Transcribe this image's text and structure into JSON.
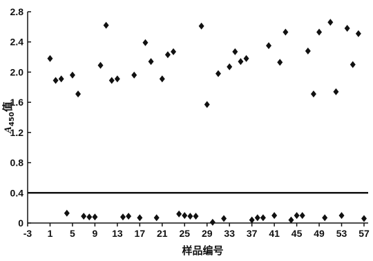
{
  "chart_data": {
    "type": "scatter",
    "title": "",
    "xlabel": "样品编号",
    "ylabel_main": "A",
    "ylabel_sub": "450",
    "ylabel_suffix": "值",
    "xlim": [
      -3,
      57
    ],
    "ylim": [
      0,
      2.8
    ],
    "x_ticks": [
      -3,
      1,
      5,
      9,
      13,
      17,
      21,
      25,
      29,
      33,
      37,
      41,
      45,
      49,
      53,
      57
    ],
    "y_ticks": [
      0,
      0.4,
      0.8,
      1.2,
      1.6,
      2.0,
      2.4,
      2.8
    ],
    "y_tick_labels": [
      "0",
      "0.4",
      "0.8",
      "1.2",
      "1.6",
      "2.0",
      "2.4",
      "2.8"
    ],
    "cutoff_line": 0.4,
    "grid": false,
    "legend": "none",
    "marker": "diamond",
    "marker_color": "#111111",
    "series": [
      {
        "points": [
          [
            1,
            2.18
          ],
          [
            2,
            1.89
          ],
          [
            3,
            1.91
          ],
          [
            4,
            0.13
          ],
          [
            5,
            1.96
          ],
          [
            6,
            1.71
          ],
          [
            7,
            0.09
          ],
          [
            8,
            0.08
          ],
          [
            9,
            0.08
          ],
          [
            10,
            2.09
          ],
          [
            11,
            2.62
          ],
          [
            12,
            1.89
          ],
          [
            13,
            1.91
          ],
          [
            14,
            0.08
          ],
          [
            15,
            0.09
          ],
          [
            16,
            1.96
          ],
          [
            17,
            0.07
          ],
          [
            18,
            2.39
          ],
          [
            19,
            2.14
          ],
          [
            20,
            0.07
          ],
          [
            21,
            1.91
          ],
          [
            22,
            2.23
          ],
          [
            23,
            2.27
          ],
          [
            24,
            0.12
          ],
          [
            25,
            0.1
          ],
          [
            26,
            0.09
          ],
          [
            27,
            0.09
          ],
          [
            28,
            2.61
          ],
          [
            29,
            1.57
          ],
          [
            30,
            0.01
          ],
          [
            31,
            1.98
          ],
          [
            32,
            0.06
          ],
          [
            33,
            2.07
          ],
          [
            34,
            2.27
          ],
          [
            35,
            2.14
          ],
          [
            36,
            2.18
          ],
          [
            37,
            0.04
          ],
          [
            38,
            0.07
          ],
          [
            39,
            0.07
          ],
          [
            40,
            2.35
          ],
          [
            41,
            0.1
          ],
          [
            42,
            2.13
          ],
          [
            43,
            2.53
          ],
          [
            44,
            0.04
          ],
          [
            45,
            0.1
          ],
          [
            46,
            0.1
          ],
          [
            47,
            2.28
          ],
          [
            48,
            1.71
          ],
          [
            49,
            2.53
          ],
          [
            50,
            0.07
          ],
          [
            51,
            2.66
          ],
          [
            52,
            1.74
          ],
          [
            53,
            0.1
          ],
          [
            54,
            2.58
          ],
          [
            55,
            2.1
          ],
          [
            56,
            2.51
          ],
          [
            57,
            0.06
          ]
        ]
      }
    ]
  }
}
